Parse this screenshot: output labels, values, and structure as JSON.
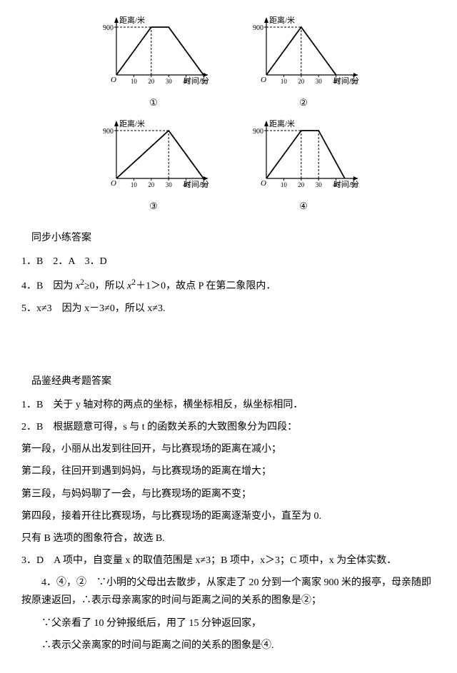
{
  "charts": {
    "ylabel": "距离/米",
    "xlabel": "时间/分",
    "ymax_label": "900",
    "xticks": [
      "10",
      "20",
      "30",
      "40",
      "50"
    ],
    "axis_color": "#000000",
    "line_color": "#000000",
    "grid_color": "#000000",
    "background_color": "#ffffff",
    "items": [
      {
        "label": "①",
        "segments": [
          [
            0,
            0
          ],
          [
            20,
            900
          ],
          [
            30,
            900
          ],
          [
            50,
            0
          ]
        ],
        "dash_x": [
          20
        ]
      },
      {
        "label": "②",
        "segments": [
          [
            0,
            0
          ],
          [
            20,
            900
          ],
          [
            40,
            0
          ]
        ],
        "dash_x": [
          20
        ]
      },
      {
        "label": "③",
        "segments": [
          [
            0,
            0
          ],
          [
            30,
            900
          ],
          [
            50,
            0
          ]
        ],
        "dash_x": [
          30
        ]
      },
      {
        "label": "④",
        "segments": [
          [
            0,
            0
          ],
          [
            20,
            900
          ],
          [
            30,
            900
          ],
          [
            45,
            0
          ]
        ],
        "dash_x": [
          20,
          30
        ]
      }
    ]
  },
  "section1": {
    "title": "同步小练答案",
    "lines": {
      "l1": "1．B　2．A　3．D",
      "l2_pre": "4．B　因为 ",
      "l2_mid": "≥0，所以 ",
      "l2_post": "＋1＞0，故点 P 在第二象限内．",
      "l3_pre": "5．x≠3　因为 x－3≠0，所以 x≠3."
    }
  },
  "section2": {
    "title": "品鉴经典考题答案",
    "q1": "1．B　关于 y 轴对称的两点的坐标，横坐标相反，纵坐标相同．",
    "q2a": "2．B　根据题意可得，s 与 t 的函数关系的大致图象分为四段：",
    "q2b": "第一段，小丽从出发到往回开，与比赛现场的距离在减小；",
    "q2c": "第二段，往回开到遇到妈妈，与比赛现场的距离在增大；",
    "q2d": "第三段，与妈妈聊了一会，与比赛现场的距离不变；",
    "q2e": "第四段，接着开往比赛现场，与比赛现场的距离逐渐变小，直至为 0.",
    "q2f": "只有 B 选项的图象符合，故选 B.",
    "q3": "3．D　A 项中，自变量 x 的取值范围是 x≠3；B 项中，x＞3；C 项中，x 为全体实数．",
    "q4a": "4．④，②　∵小明的父母出去散步，从家走了 20 分到一个离家 900 米的报亭，母亲随即按原速返回，∴表示母亲离家的时间与距离之间的关系的图象是②；",
    "q4b": "∵父亲看了 10 分钟报纸后，用了 15 分钟返回家，",
    "q4c": "∴表示父亲离家的时间与距离之间的关系的图象是④."
  }
}
